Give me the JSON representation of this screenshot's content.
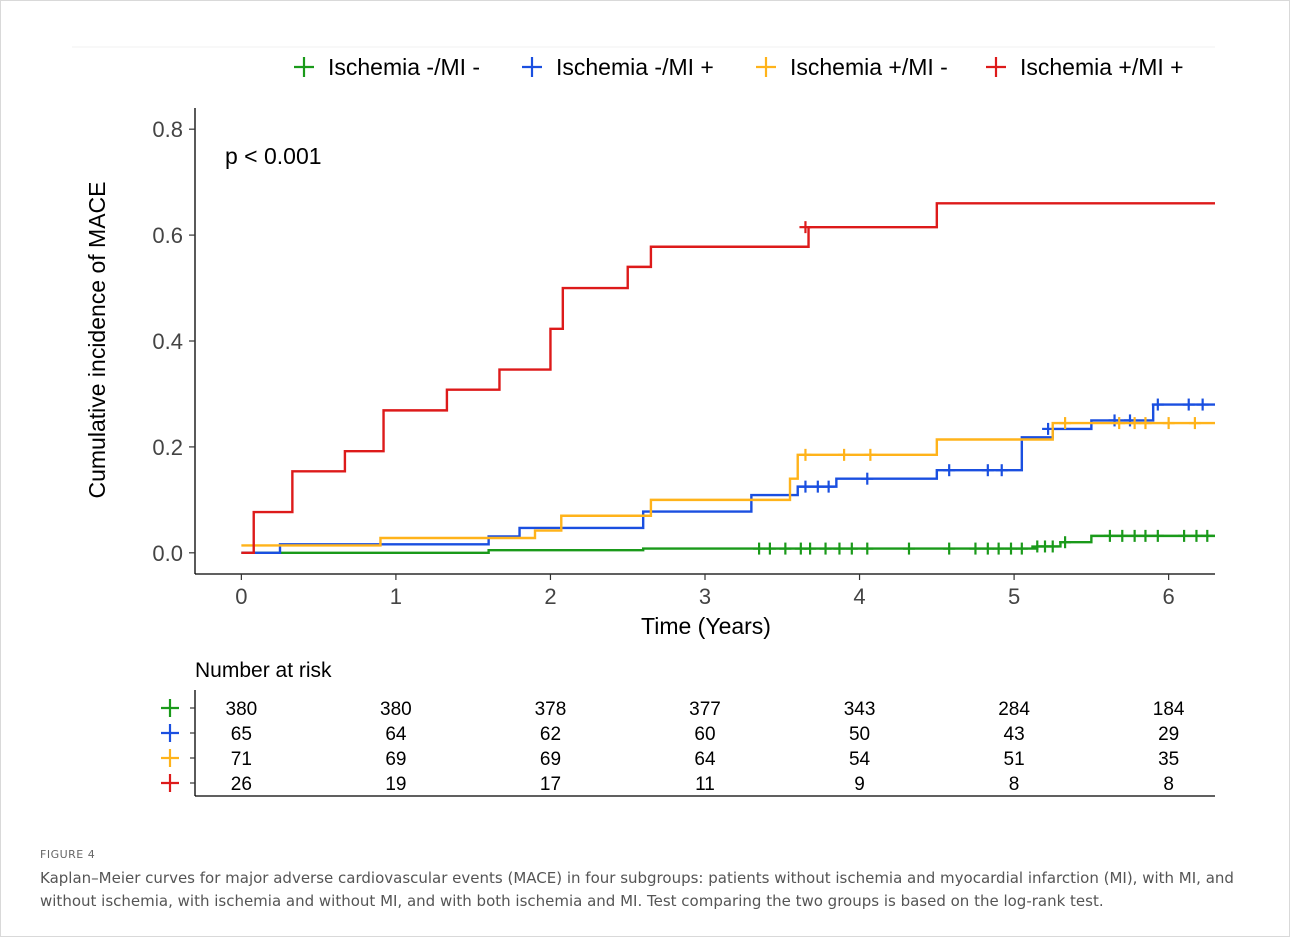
{
  "chart_data": {
    "type": "line",
    "step": true,
    "xlabel": "Time (Years)",
    "ylabel": "Cumulative incidence of MACE",
    "xlim": [
      -0.3,
      6.3
    ],
    "ylim": [
      -0.04,
      0.84
    ],
    "xticks": [
      "0",
      "1",
      "2",
      "3",
      "4",
      "5",
      "6"
    ],
    "yticks": [
      "0.0",
      "0.2",
      "0.4",
      "0.6",
      "0.8"
    ],
    "annotation": "p < 0.001",
    "legend_position": "top",
    "series": [
      {
        "name": "Ischemia -/MI -",
        "color": "#1a9a1a",
        "steps": [
          [
            0,
            0
          ],
          [
            1.6,
            0.005
          ],
          [
            2.6,
            0.008
          ],
          [
            5.15,
            0.012
          ],
          [
            5.3,
            0.02
          ],
          [
            5.5,
            0.032
          ],
          [
            6.3,
            0.032
          ]
        ],
        "censored": [
          [
            3.35,
            0.008
          ],
          [
            3.42,
            0.008
          ],
          [
            3.52,
            0.008
          ],
          [
            3.62,
            0.008
          ],
          [
            3.68,
            0.008
          ],
          [
            3.78,
            0.008
          ],
          [
            3.87,
            0.008
          ],
          [
            3.95,
            0.008
          ],
          [
            4.05,
            0.008
          ],
          [
            4.32,
            0.008
          ],
          [
            4.58,
            0.008
          ],
          [
            4.75,
            0.008
          ],
          [
            4.83,
            0.008
          ],
          [
            4.9,
            0.008
          ],
          [
            4.98,
            0.008
          ],
          [
            5.05,
            0.008
          ],
          [
            5.15,
            0.012
          ],
          [
            5.2,
            0.012
          ],
          [
            5.25,
            0.012
          ],
          [
            5.33,
            0.02
          ],
          [
            5.62,
            0.032
          ],
          [
            5.7,
            0.032
          ],
          [
            5.78,
            0.032
          ],
          [
            5.85,
            0.032
          ],
          [
            5.93,
            0.032
          ],
          [
            6.1,
            0.032
          ],
          [
            6.18,
            0.032
          ],
          [
            6.25,
            0.032
          ]
        ]
      },
      {
        "name": "Ischemia -/MI +",
        "color": "#1a4fe0",
        "steps": [
          [
            0,
            0
          ],
          [
            0.25,
            0.016
          ],
          [
            1.6,
            0.031
          ],
          [
            1.8,
            0.047
          ],
          [
            2.6,
            0.078
          ],
          [
            3.3,
            0.109
          ],
          [
            3.6,
            0.125
          ],
          [
            3.85,
            0.14
          ],
          [
            4.5,
            0.156
          ],
          [
            5.05,
            0.218
          ],
          [
            5.25,
            0.234
          ],
          [
            5.5,
            0.25
          ],
          [
            5.9,
            0.28
          ],
          [
            6.3,
            0.28
          ]
        ],
        "censored": [
          [
            3.65,
            0.125
          ],
          [
            3.73,
            0.125
          ],
          [
            3.8,
            0.125
          ],
          [
            4.05,
            0.14
          ],
          [
            4.58,
            0.156
          ],
          [
            4.83,
            0.156
          ],
          [
            4.92,
            0.156
          ],
          [
            5.22,
            0.234
          ],
          [
            5.65,
            0.25
          ],
          [
            5.75,
            0.25
          ],
          [
            5.93,
            0.28
          ],
          [
            6.13,
            0.28
          ],
          [
            6.22,
            0.28
          ]
        ]
      },
      {
        "name": "Ischemia +/MI -",
        "color": "#ffb31a",
        "steps": [
          [
            0,
            0.014
          ],
          [
            0.9,
            0.028
          ],
          [
            1.9,
            0.042
          ],
          [
            2.07,
            0.07
          ],
          [
            2.65,
            0.1
          ],
          [
            3.55,
            0.14
          ],
          [
            3.6,
            0.185
          ],
          [
            4.5,
            0.214
          ],
          [
            5.25,
            0.245
          ],
          [
            6.3,
            0.245
          ]
        ],
        "censored": [
          [
            3.65,
            0.185
          ],
          [
            3.9,
            0.185
          ],
          [
            4.07,
            0.185
          ],
          [
            5.33,
            0.245
          ],
          [
            5.68,
            0.245
          ],
          [
            5.78,
            0.245
          ],
          [
            5.85,
            0.245
          ],
          [
            6,
            0.245
          ],
          [
            6.17,
            0.245
          ]
        ]
      },
      {
        "name": "Ischemia +/MI +",
        "color": "#dd1a1a",
        "steps": [
          [
            0,
            0
          ],
          [
            0.08,
            0.077
          ],
          [
            0.33,
            0.154
          ],
          [
            0.67,
            0.192
          ],
          [
            0.92,
            0.269
          ],
          [
            1.33,
            0.308
          ],
          [
            1.67,
            0.346
          ],
          [
            2,
            0.423
          ],
          [
            2.08,
            0.5
          ],
          [
            2.5,
            0.54
          ],
          [
            2.65,
            0.578
          ],
          [
            3.67,
            0.615
          ],
          [
            4.5,
            0.66
          ],
          [
            6.3,
            0.66
          ]
        ],
        "censored": [
          [
            3.65,
            0.615
          ]
        ]
      }
    ]
  },
  "risk_table": {
    "title": "Number at risk",
    "times": [
      0,
      1,
      2,
      3,
      4,
      5,
      6
    ],
    "rows": [
      {
        "color": "#1a9a1a",
        "values": [
          "380",
          "380",
          "378",
          "377",
          "343",
          "284",
          "184"
        ]
      },
      {
        "color": "#1a4fe0",
        "values": [
          "65",
          "64",
          "62",
          "60",
          "50",
          "43",
          "29"
        ]
      },
      {
        "color": "#ffb31a",
        "values": [
          "71",
          "69",
          "69",
          "64",
          "54",
          "51",
          "35"
        ]
      },
      {
        "color": "#dd1a1a",
        "values": [
          "26",
          "19",
          "17",
          "11",
          "9",
          "8",
          "8"
        ]
      }
    ]
  },
  "caption": {
    "label": "FIGURE 4",
    "text": "Kaplan–Meier curves for major adverse cardiovascular events (MACE) in four subgroups: patients without ischemia and myocardial infarction (MI), with MI, and without ischemia, with ischemia and without MI, and with both ischemia and MI. Test comparing the two groups is based on the log-rank test."
  }
}
